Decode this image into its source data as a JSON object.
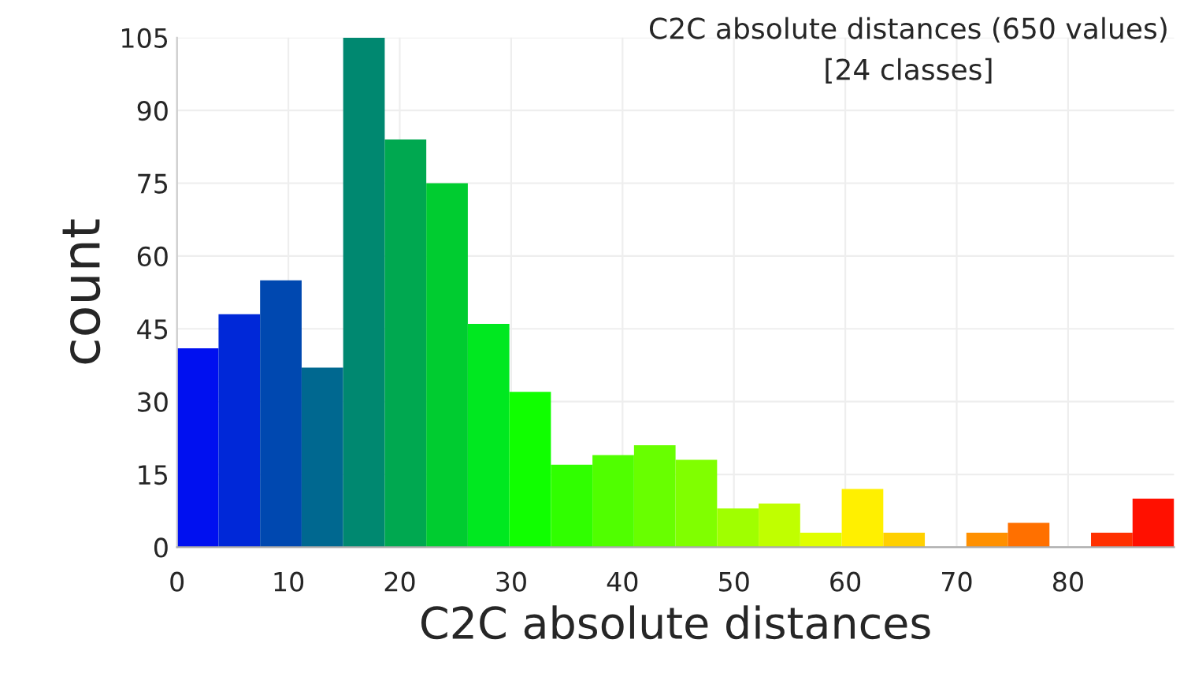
{
  "chart_data": {
    "type": "histogram",
    "title": "C2C absolute distances (650 values)",
    "subtitle": "[24 classes]",
    "xlabel": "C2C absolute distances",
    "ylabel": "count",
    "bins": [
      0,
      3.73,
      7.46,
      11.19,
      14.92,
      18.65,
      22.38,
      26.11,
      29.84,
      33.57,
      37.3,
      41.03,
      44.76,
      48.49,
      52.22,
      55.95,
      59.68,
      63.41,
      67.14,
      70.87,
      74.6,
      78.33,
      82.06,
      85.79,
      89.52
    ],
    "values": [
      41,
      48,
      55,
      37,
      105,
      84,
      75,
      46,
      32,
      17,
      19,
      21,
      18,
      8,
      9,
      3,
      12,
      3,
      0,
      3,
      5,
      0,
      3,
      10
    ],
    "colors": [
      "#0010f0",
      "#0028d8",
      "#0048b0",
      "#006890",
      "#008870",
      "#00a850",
      "#00cc30",
      "#00e820",
      "#10ff00",
      "#30ff00",
      "#50ff00",
      "#68ff00",
      "#80ff00",
      "#a0ff00",
      "#c0ff00",
      "#e0ff00",
      "#fff000",
      "#ffd000",
      "#ffb000",
      "#ff9000",
      "#ff7000",
      "#ff5000",
      "#ff3000",
      "#ff1000"
    ],
    "xlim": [
      0,
      89.52
    ],
    "xticks": [
      0,
      10,
      20,
      30,
      40,
      50,
      60,
      70,
      80
    ],
    "ylim": [
      0,
      105
    ],
    "yticks": [
      0,
      15,
      30,
      45,
      60,
      75,
      90,
      105
    ],
    "grid": true
  }
}
